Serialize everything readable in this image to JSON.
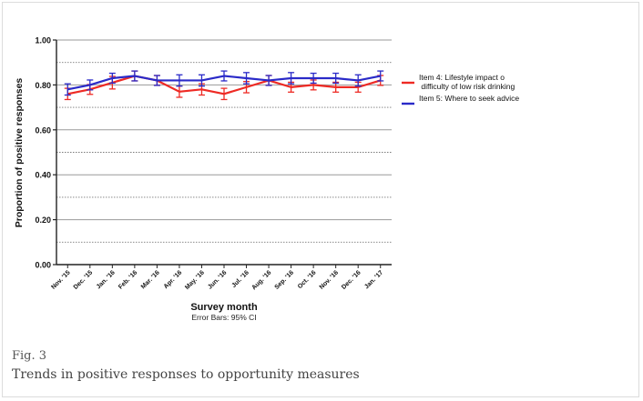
{
  "figure": {
    "label": "Fig. 3",
    "title": "Trends in positive responses to opportunity measures"
  },
  "chart_data": {
    "type": "line",
    "xlabel": "Survey month",
    "xlabel_note": "Error Bars: 95% CI",
    "ylabel": "Proportion of positive responses",
    "ylim": [
      0,
      1
    ],
    "yticks": [
      "0.00",
      "0.20",
      "0.40",
      "0.60",
      "0.80",
      "1.00"
    ],
    "categories": [
      "Nov. '15",
      "Dec. '15",
      "Jan. '16",
      "Feb. '16",
      "Mar. '16",
      "Apr. '16",
      "May. '16",
      "Jun. '16",
      "Jul. '16",
      "Aug. '16",
      "Sep. '16",
      "Oct. '16",
      "Nov. '16",
      "Dec. '16",
      "Jan. '17"
    ],
    "grid": true,
    "legend_position": "right",
    "series": [
      {
        "name": "Item 4: Lifestyle impact on difficulty of low risk drinking",
        "color": "#ee2a24",
        "values": [
          0.76,
          0.78,
          0.81,
          0.84,
          0.82,
          0.77,
          0.78,
          0.76,
          0.79,
          0.82,
          0.79,
          0.8,
          0.79,
          0.79,
          0.82
        ],
        "ci": [
          0.025,
          0.022,
          0.028,
          0.022,
          0.022,
          0.025,
          0.025,
          0.025,
          0.025,
          0.022,
          0.022,
          0.022,
          0.022,
          0.022,
          0.022
        ]
      },
      {
        "name": "Item 5: Where to seek advice",
        "color": "#2a2ac8",
        "values": [
          0.78,
          0.8,
          0.83,
          0.84,
          0.82,
          0.82,
          0.82,
          0.84,
          0.83,
          0.82,
          0.83,
          0.83,
          0.83,
          0.82,
          0.84
        ],
        "ci": [
          0.025,
          0.022,
          0.022,
          0.022,
          0.022,
          0.025,
          0.025,
          0.022,
          0.025,
          0.022,
          0.025,
          0.022,
          0.022,
          0.025,
          0.022
        ]
      }
    ]
  }
}
